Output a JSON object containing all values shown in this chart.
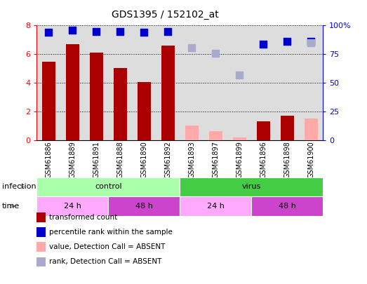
{
  "title": "GDS1395 / 152102_at",
  "samples": [
    "GSM61886",
    "GSM61889",
    "GSM61891",
    "GSM61888",
    "GSM61890",
    "GSM61892",
    "GSM61893",
    "GSM61897",
    "GSM61899",
    "GSM61896",
    "GSM61898",
    "GSM61900"
  ],
  "transformed_count": [
    5.5,
    6.7,
    6.1,
    5.05,
    4.05,
    6.6,
    null,
    null,
    null,
    1.3,
    1.7,
    null
  ],
  "transformed_count_absent": [
    null,
    null,
    null,
    null,
    null,
    null,
    1.05,
    0.65,
    0.2,
    null,
    null,
    1.5
  ],
  "percentile_rank": [
    94,
    96,
    95,
    95,
    94,
    95,
    null,
    null,
    null,
    84,
    86,
    86
  ],
  "percentile_rank_absent": [
    null,
    null,
    null,
    null,
    null,
    null,
    81,
    76,
    57,
    null,
    null,
    85
  ],
  "bar_color_present": "#aa0000",
  "bar_color_absent": "#ffaaaa",
  "dot_color_present": "#0000cc",
  "dot_color_absent": "#aaaacc",
  "ylim_left": [
    0,
    8
  ],
  "ylim_right": [
    0,
    100
  ],
  "yticks_left": [
    0,
    2,
    4,
    6,
    8
  ],
  "yticks_right": [
    0,
    25,
    50,
    75,
    100
  ],
  "yticklabels_right": [
    "0",
    "25",
    "50",
    "75",
    "100%"
  ],
  "infection_groups": [
    {
      "label": "control",
      "start": 0,
      "end": 6,
      "color": "#aaffaa"
    },
    {
      "label": "virus",
      "start": 6,
      "end": 12,
      "color": "#44cc44"
    }
  ],
  "time_groups": [
    {
      "label": "24 h",
      "start": 0,
      "end": 3,
      "color": "#ffaaff"
    },
    {
      "label": "48 h",
      "start": 3,
      "end": 6,
      "color": "#cc44cc"
    },
    {
      "label": "24 h",
      "start": 6,
      "end": 9,
      "color": "#ffaaff"
    },
    {
      "label": "48 h",
      "start": 9,
      "end": 12,
      "color": "#cc44cc"
    }
  ],
  "legend_items": [
    {
      "label": "transformed count",
      "color": "#aa0000"
    },
    {
      "label": "percentile rank within the sample",
      "color": "#0000cc"
    },
    {
      "label": "value, Detection Call = ABSENT",
      "color": "#ffaaaa"
    },
    {
      "label": "rank, Detection Call = ABSENT",
      "color": "#aaaacc"
    }
  ],
  "bar_width": 0.55,
  "dot_size": 45,
  "background_color": "#ffffff",
  "plot_bg_color": "#dddddd",
  "infection_label": "infection",
  "time_label": "time"
}
